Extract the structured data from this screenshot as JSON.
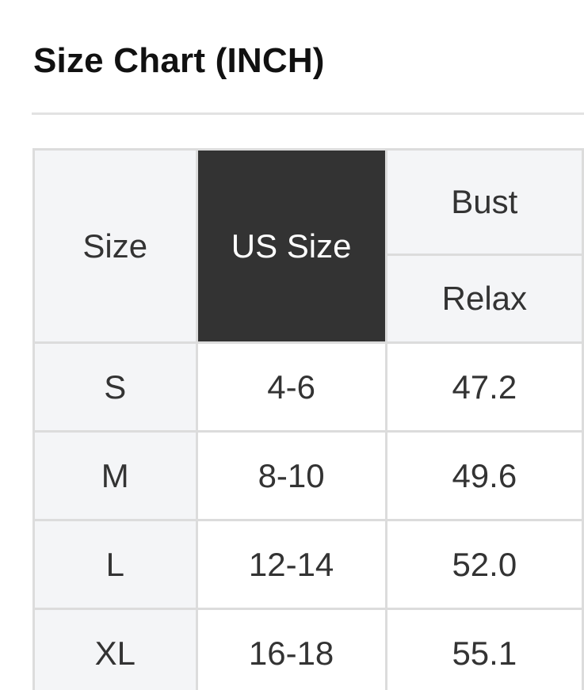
{
  "title": "Size Chart (INCH)",
  "table": {
    "headers": {
      "size": "Size",
      "us_size": "US Size",
      "bust": "Bust",
      "relax": "Relax"
    },
    "rows": [
      {
        "size": "S",
        "us_size": "4-6",
        "bust_relax": "47.2"
      },
      {
        "size": "M",
        "us_size": "8-10",
        "bust_relax": "49.6"
      },
      {
        "size": "L",
        "us_size": "12-14",
        "bust_relax": "52.0"
      },
      {
        "size": "XL",
        "us_size": "16-18",
        "bust_relax": "55.1"
      }
    ]
  },
  "colors": {
    "header_bg": "#f4f5f7",
    "highlight_bg": "#333333",
    "border": "#dcdcdc"
  }
}
